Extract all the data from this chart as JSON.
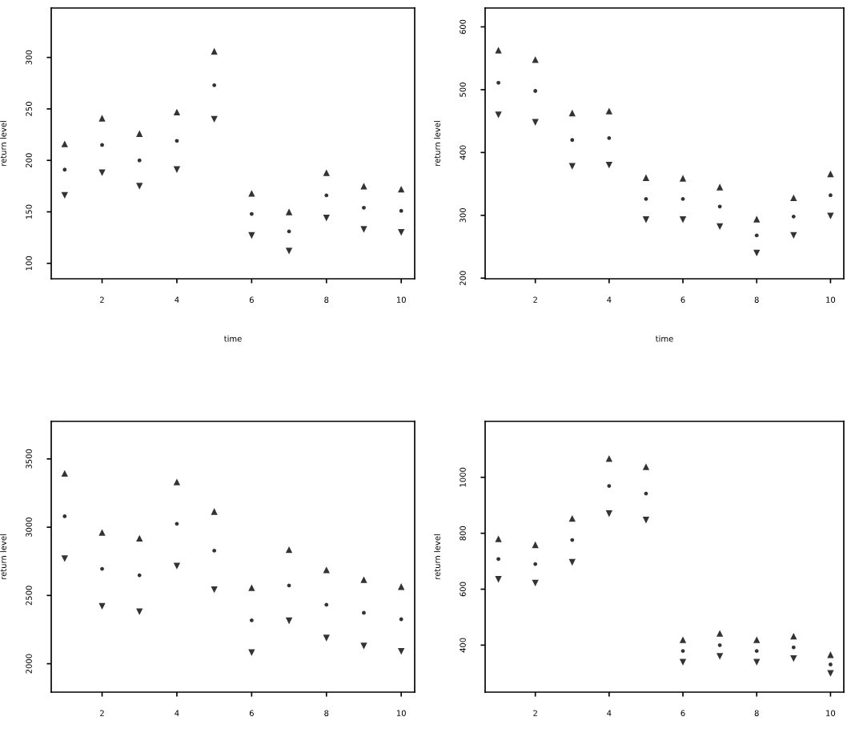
{
  "chart_data": [
    {
      "type": "scatter",
      "xlabel": "time",
      "ylabel": "return level",
      "x": [
        1,
        2,
        3,
        4,
        5,
        6,
        7,
        8,
        9,
        10
      ],
      "xlim": [
        0.64,
        10.36
      ],
      "xticks": [
        2,
        4,
        6,
        8,
        10
      ],
      "ylim": [
        85,
        348
      ],
      "yticks": [
        100,
        150,
        200,
        250,
        300
      ],
      "grid": false,
      "series": [
        {
          "color": "#333333",
          "marker": "triangle",
          "values": [
            216,
            241,
            226,
            247,
            306,
            168,
            150,
            188,
            175,
            172
          ]
        },
        {
          "color": "#333333",
          "marker": "circle",
          "values": [
            191,
            215,
            200,
            219,
            273,
            148,
            131,
            166,
            154,
            151
          ]
        },
        {
          "color": "#333333",
          "marker": "triangle_down",
          "values": [
            166,
            188,
            175,
            191,
            240,
            127,
            112,
            144,
            133,
            130
          ]
        }
      ]
    },
    {
      "type": "scatter",
      "xlabel": "time",
      "ylabel": "return level",
      "x": [
        1,
        2,
        3,
        4,
        5,
        6,
        7,
        8,
        9,
        10
      ],
      "xlim": [
        0.64,
        10.36
      ],
      "xticks": [
        2,
        4,
        6,
        8,
        10
      ],
      "ylim": [
        199,
        630
      ],
      "yticks": [
        200,
        300,
        400,
        500,
        600
      ],
      "grid": false,
      "series": [
        {
          "color": "#333333",
          "marker": "triangle",
          "values": [
            563,
            548,
            463,
            466,
            360,
            359,
            345,
            294,
            328,
            366
          ]
        },
        {
          "color": "#333333",
          "marker": "circle",
          "values": [
            511,
            498,
            420,
            423,
            326,
            326,
            314,
            268,
            298,
            332
          ]
        },
        {
          "color": "#333333",
          "marker": "triangle_down",
          "values": [
            460,
            448,
            378,
            380,
            293,
            293,
            282,
            240,
            268,
            299
          ]
        }
      ]
    },
    {
      "type": "scatter",
      "ylabel": "return level",
      "x": [
        1,
        2,
        3,
        4,
        5,
        6,
        7,
        8,
        9,
        10
      ],
      "xlim": [
        0.64,
        10.36
      ],
      "xticks": [
        2,
        4,
        6,
        8,
        10
      ],
      "ylim": [
        1792,
        3775
      ],
      "yticks": [
        2000,
        2500,
        3000,
        3500
      ],
      "grid": false,
      "series": [
        {
          "color": "#333333",
          "marker": "triangle",
          "values": [
            3394,
            2962,
            2919,
            3331,
            3115,
            2557,
            2836,
            2687,
            2616,
            2565
          ]
        },
        {
          "color": "#333333",
          "marker": "circle",
          "values": [
            3080,
            2695,
            2648,
            3025,
            2828,
            2318,
            2573,
            2432,
            2373,
            2326
          ]
        },
        {
          "color": "#333333",
          "marker": "triangle_down",
          "values": [
            2770,
            2420,
            2381,
            2715,
            2542,
            2082,
            2314,
            2188,
            2130,
            2090
          ]
        }
      ]
    },
    {
      "type": "scatter",
      "ylabel": "return level",
      "x": [
        1,
        2,
        3,
        4,
        5,
        6,
        7,
        8,
        9,
        10
      ],
      "xlim": [
        0.64,
        10.36
      ],
      "xticks": [
        2,
        4,
        6,
        8,
        10
      ],
      "ylim": [
        232,
        1200
      ],
      "yticks": [
        400,
        600,
        800,
        1000
      ],
      "grid": false,
      "series": [
        {
          "color": "#333333",
          "marker": "triangle",
          "values": [
            780,
            759,
            853,
            1067,
            1038,
            419,
            442,
            419,
            432,
            366
          ]
        },
        {
          "color": "#333333",
          "marker": "circle",
          "values": [
            708,
            690,
            776,
            969,
            942,
            379,
            400,
            379,
            392,
            331
          ]
        },
        {
          "color": "#333333",
          "marker": "triangle_down",
          "values": [
            635,
            622,
            696,
            870,
            847,
            339,
            360,
            339,
            352,
            299
          ]
        }
      ]
    }
  ]
}
